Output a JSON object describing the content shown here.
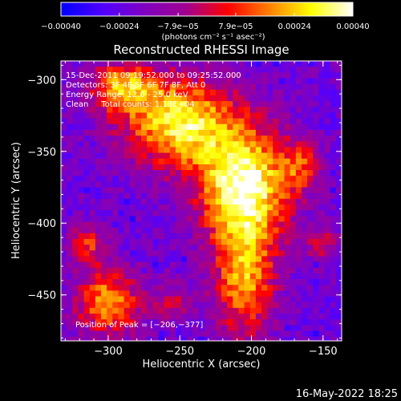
{
  "chart_data": {
    "type": "heatmap",
    "title": "Reconstructed RHESSI Image",
    "xlabel": "Heliocentric X (arcsec)",
    "ylabel": "Heliocentric Y (arcsec)",
    "xlim": [
      -333,
      -137
    ],
    "ylim": [
      -482,
      -287
    ],
    "x_ticks": [
      {
        "value": -300,
        "label": "−300"
      },
      {
        "value": -250,
        "label": "−250"
      },
      {
        "value": -200,
        "label": "−200"
      },
      {
        "value": -150,
        "label": "−150"
      }
    ],
    "y_ticks": [
      {
        "value": -300,
        "label": "−300"
      },
      {
        "value": -350,
        "label": "−350"
      },
      {
        "value": -400,
        "label": "−400"
      },
      {
        "value": -450,
        "label": "−450"
      }
    ],
    "colorbar": {
      "range": [
        -0.0004,
        0.0004
      ],
      "ticks": [
        {
          "value": -0.0004,
          "label": "−0.00040"
        },
        {
          "value": -0.00024,
          "label": "−0.00024"
        },
        {
          "value": -7.9e-05,
          "label": "−7.9e−05"
        },
        {
          "value": 7.9e-05,
          "label": "7.9e−05"
        },
        {
          "value": 0.00024,
          "label": "0.00024"
        },
        {
          "value": 0.0004,
          "label": "0.00040"
        }
      ],
      "unit_label": "(photons cm⁻² s⁻¹ asec⁻²)",
      "colors": [
        "#0000ff",
        "#5000ff",
        "#8000c0",
        "#a00090",
        "#ff0000",
        "#ff8000",
        "#ffff00",
        "#ffffff"
      ]
    },
    "annotations": {
      "time_range": "15-Dec-2011 09:19:52.000 to 09:25:52.000",
      "detectors": "Detectors: 3F 4F 5F 6F 7F 8F, Att 0",
      "energy_range": "Energy Range: 12.0 - 25.0 keV",
      "method_counts": "Clean     Total counts: 1.18E+04",
      "peak": "Position of Peak = [−206,−377]"
    },
    "peak": [
      -206,
      -377
    ],
    "sources": [
      {
        "x": -205,
        "y": -375,
        "sx": 22,
        "sy": 28,
        "amp": 1.0
      },
      {
        "x": -250,
        "y": -330,
        "sx": 28,
        "sy": 22,
        "amp": 0.85
      },
      {
        "x": -290,
        "y": -305,
        "sx": 16,
        "sy": 12,
        "amp": 0.65
      },
      {
        "x": -300,
        "y": -455,
        "sx": 16,
        "sy": 16,
        "amp": 0.7
      },
      {
        "x": -205,
        "y": -440,
        "sx": 15,
        "sy": 28,
        "amp": 0.65
      },
      {
        "x": -315,
        "y": -415,
        "sx": 10,
        "sy": 10,
        "amp": 0.45
      },
      {
        "x": -165,
        "y": -360,
        "sx": 10,
        "sy": 12,
        "amp": 0.4
      },
      {
        "x": -150,
        "y": -415,
        "sx": 8,
        "sy": 8,
        "amp": 0.35
      },
      {
        "x": -255,
        "y": -455,
        "sx": 10,
        "sy": 10,
        "amp": 0.3
      }
    ]
  },
  "footer": {
    "timestamp": "16-May-2022 18:25"
  }
}
